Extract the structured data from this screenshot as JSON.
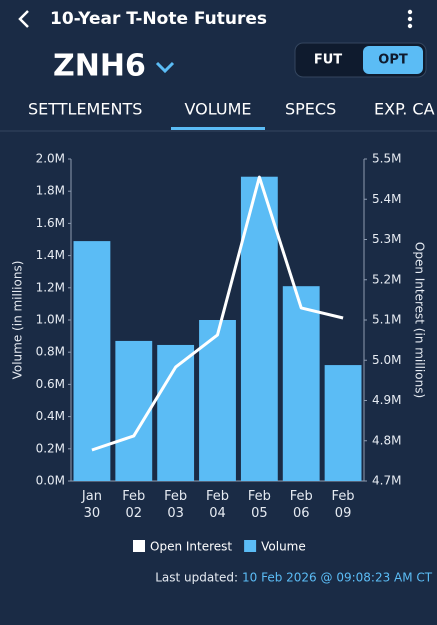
{
  "header": {
    "title": "10-Year T-Note Futures",
    "symbol": "ZNH6",
    "toggle": [
      "FUT",
      "OPT"
    ]
  },
  "tabs": [
    "SETTLEMENTS",
    "VOLUME",
    "SPECS",
    "EXP. CA"
  ],
  "chart_data": {
    "type": "bar",
    "categories": [
      "Jan 30",
      "Feb 02",
      "Feb 03",
      "Feb 04",
      "Feb 05",
      "Feb 06",
      "Feb 09"
    ],
    "y_label": "Volume (in millions)",
    "y2_label": "Open Interest (in millions)",
    "ylim": [
      0,
      2.0
    ],
    "yticks": [
      {
        "value": 0,
        "label": "0.0M"
      },
      {
        "value": 0.2,
        "label": "0.2M"
      },
      {
        "value": 0.4,
        "label": "0.4M"
      },
      {
        "value": 0.6,
        "label": "0.6M"
      },
      {
        "value": 0.8,
        "label": "0.8M"
      },
      {
        "value": 1.0,
        "label": "1.0M"
      },
      {
        "value": 1.2,
        "label": "1.2M"
      },
      {
        "value": 1.4,
        "label": "1.4M"
      },
      {
        "value": 1.6,
        "label": "1.6M"
      },
      {
        "value": 1.8,
        "label": "1.8M"
      },
      {
        "value": 2.0,
        "label": "2.0M"
      }
    ],
    "y2lim": [
      4.7,
      5.5
    ],
    "y2ticks": [
      {
        "value": 4.7,
        "label": "4.7M"
      },
      {
        "value": 4.8,
        "label": "4.8M"
      },
      {
        "value": 4.9,
        "label": "4.9M"
      },
      {
        "value": 5.0,
        "label": "5.0M"
      },
      {
        "value": 5.1,
        "label": "5.1M"
      },
      {
        "value": 5.2,
        "label": "5.2M"
      },
      {
        "value": 5.3,
        "label": "5.3M"
      },
      {
        "value": 5.4,
        "label": "5.4M"
      },
      {
        "value": 5.5,
        "label": "5.5M"
      }
    ],
    "series": [
      {
        "name": "Volume",
        "type": "bar",
        "color": "#5bbcf5",
        "values": [
          1.49,
          0.87,
          0.845,
          1.0,
          1.89,
          1.21,
          0.72
        ]
      },
      {
        "name": "Open Interest",
        "type": "line",
        "axis": "y2",
        "color": "#ffffff",
        "values": [
          4.777,
          4.812,
          4.983,
          5.063,
          5.455,
          5.13,
          5.105
        ]
      }
    ],
    "legend_order": [
      "Open Interest",
      "Volume"
    ]
  },
  "footer": {
    "label": "Last updated:",
    "timestamp": "10 Feb 2026 @ 09:08:23 AM CT"
  }
}
